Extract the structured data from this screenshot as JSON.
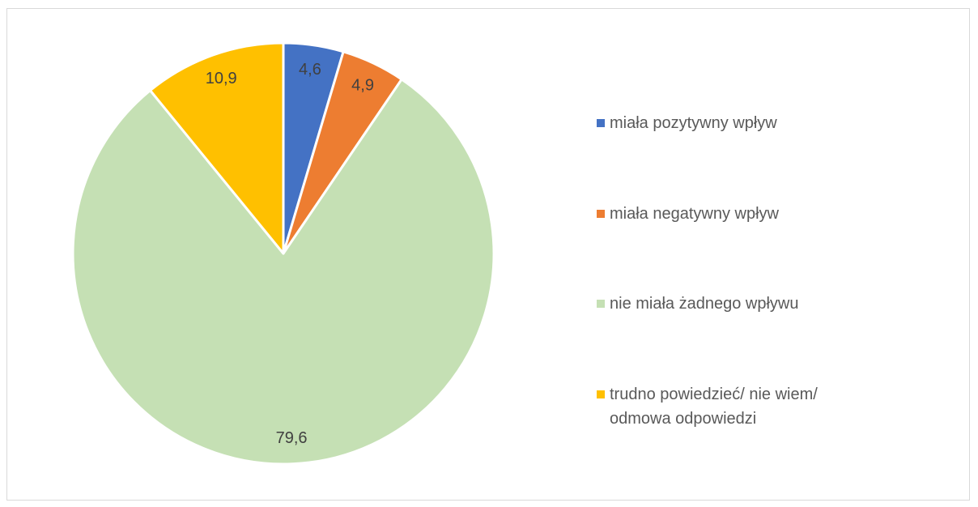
{
  "chart_data": {
    "type": "pie",
    "categories": [
      "miała pozytywny wpływ",
      "miała negatywny wpływ",
      "nie miała żadnego wpływu",
      "trudno powiedzieć/ nie wiem/ odmowa odpowiedzi"
    ],
    "values": [
      4.6,
      4.9,
      79.6,
      10.9
    ],
    "value_labels": [
      "4,6",
      "4,9",
      "79,6",
      "10,9"
    ],
    "colors": [
      "#4472c4",
      "#ed7d31",
      "#c5e0b4",
      "#ffc000"
    ],
    "legend": "right"
  }
}
